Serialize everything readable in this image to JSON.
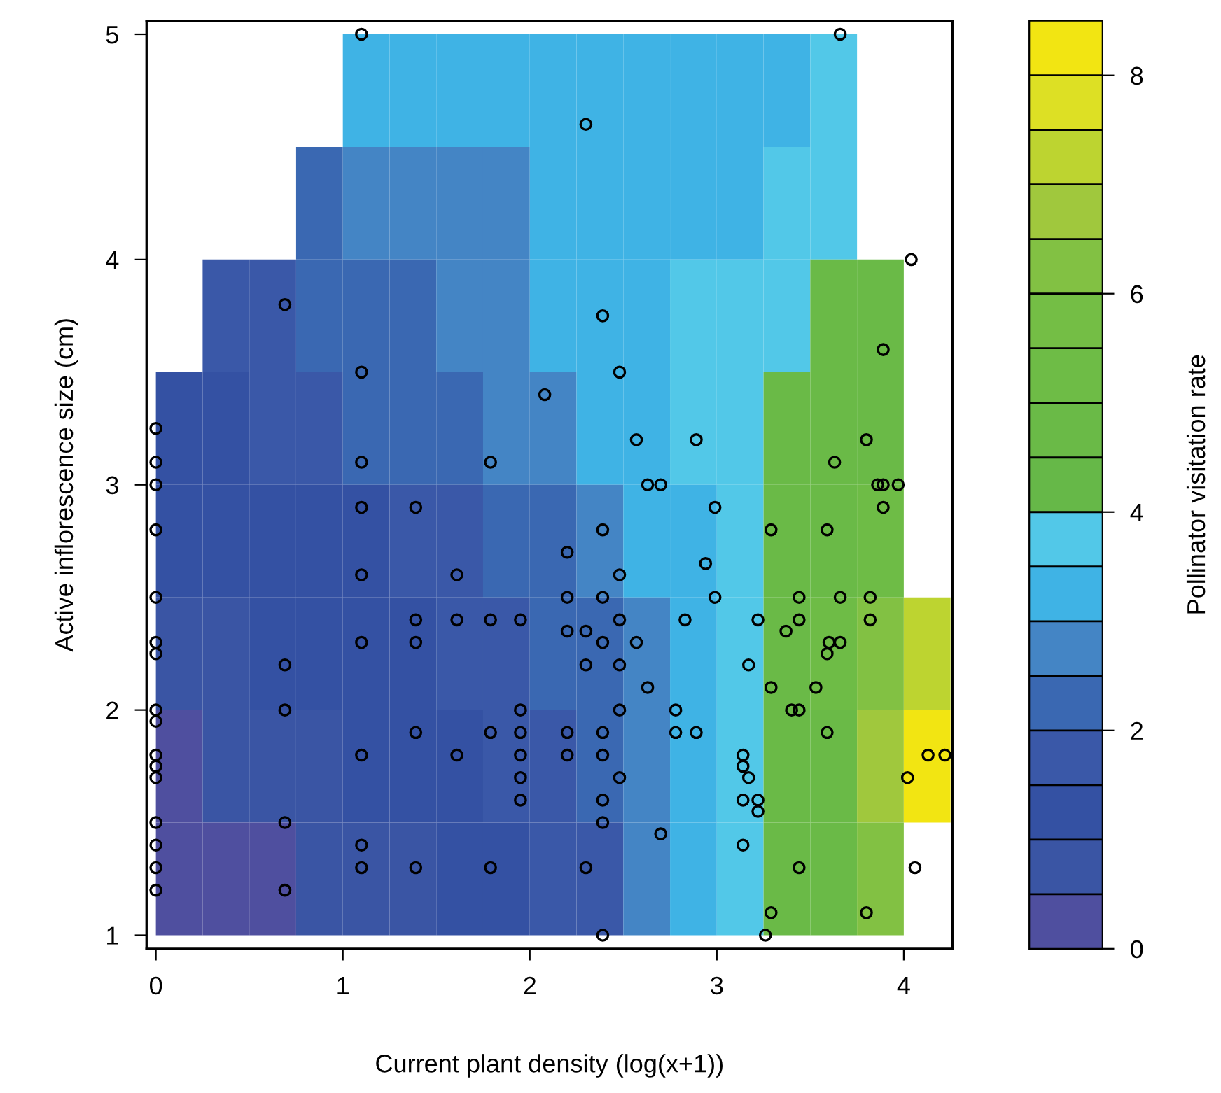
{
  "chart_data": {
    "type": "heatmap",
    "xlabel": "Current plant density (log(x+1))",
    "ylabel": "Active inflorescence size (cm)",
    "clabel": "Pollinator visitation rate",
    "xlim": [
      -0.05,
      4.26
    ],
    "ylim": [
      0.94,
      5.06
    ],
    "xticks": [
      0,
      1,
      2,
      3,
      4
    ],
    "yticks": [
      1,
      2,
      3,
      4,
      5
    ],
    "clim": [
      0,
      8.5
    ],
    "cticks": [
      0,
      2,
      4,
      6,
      8
    ],
    "colors": [
      "#4f4f9f",
      "#3a55a4",
      "#3451a3",
      "#3a58a8",
      "#3a68b2",
      "#4485c5",
      "#3fb3e5",
      "#52c8e8",
      "#66b848",
      "#6aba47",
      "#6ebc46",
      "#74be45",
      "#82c143",
      "#a0c83d",
      "#bdd430",
      "#dde024",
      "#f2e512"
    ],
    "grid": false,
    "x": [
      0.125,
      0.375,
      0.625,
      0.875,
      1.125,
      1.375,
      1.625,
      1.875,
      2.125,
      2.375,
      2.625,
      2.875,
      3.125,
      3.375,
      3.625,
      3.875,
      4.125
    ],
    "cells": [
      [
        null,
        null,
        null,
        null,
        3.25,
        3.25,
        3.25,
        3.25,
        3.25,
        3.25,
        3.25,
        3.25,
        3.25,
        3.25,
        3.75,
        null,
        null
      ],
      [
        null,
        null,
        null,
        2.25,
        2.75,
        2.75,
        2.75,
        2.75,
        3.25,
        3.25,
        3.25,
        3.25,
        3.25,
        3.75,
        3.75,
        null,
        null
      ],
      [
        null,
        1.75,
        1.75,
        2.25,
        2.25,
        2.25,
        2.75,
        2.75,
        3.25,
        3.25,
        3.25,
        3.75,
        3.75,
        3.75,
        4.75,
        4.75,
        null
      ],
      [
        1.25,
        1.25,
        1.75,
        1.75,
        2.25,
        2.25,
        2.25,
        2.75,
        2.75,
        3.25,
        3.25,
        3.75,
        3.75,
        4.75,
        4.75,
        4.75,
        null
      ],
      [
        1.25,
        1.25,
        1.25,
        1.25,
        1.25,
        1.75,
        1.75,
        2.25,
        2.25,
        2.75,
        3.25,
        3.25,
        3.75,
        4.75,
        4.75,
        5.25,
        null
      ],
      [
        0.75,
        0.75,
        1.25,
        1.25,
        1.25,
        1.25,
        1.75,
        1.75,
        2.25,
        2.25,
        2.75,
        3.25,
        3.75,
        4.75,
        5.25,
        6.25,
        7.25
      ],
      [
        0.25,
        0.75,
        0.75,
        0.75,
        1.25,
        1.25,
        1.25,
        1.75,
        1.75,
        2.25,
        2.75,
        3.25,
        3.75,
        4.75,
        4.75,
        6.75,
        8.25
      ],
      [
        0.25,
        0.25,
        0.25,
        0.75,
        0.75,
        0.75,
        1.25,
        1.25,
        1.75,
        1.75,
        2.75,
        3.25,
        3.75,
        4.75,
        4.75,
        6.25,
        null
      ]
    ],
    "series": [
      {
        "type": "scatter",
        "color": "#000000",
        "marker": "circle",
        "x": [
          1.1,
          0.69,
          1.1,
          2.08,
          0,
          0,
          1.1,
          1.79,
          0,
          3.66,
          2.3,
          4.04,
          2.39,
          2.48,
          3.89,
          2.57,
          2.89,
          3.8,
          3.63,
          2.63,
          2.7,
          3.86,
          3.89,
          3.97,
          0,
          1.1,
          1.39,
          0,
          1.1,
          1.61,
          1.39,
          1.61,
          1.79,
          1.95,
          0,
          0,
          1.1,
          1.39,
          0.69,
          0,
          0,
          0.69,
          1.95,
          1.39,
          1.79,
          1.95,
          0,
          0,
          0,
          1.1,
          1.61,
          1.95,
          1.95,
          1.95,
          0,
          0.69,
          0,
          1.1,
          0,
          1.1,
          1.39,
          1.79,
          0,
          0.69,
          2.99,
          3.89,
          2.39,
          3.29,
          3.59,
          2.2,
          2.48,
          2.94,
          2.2,
          2.39,
          2.99,
          3.44,
          3.66,
          3.82,
          2.48,
          2.83,
          3.22,
          3.44,
          3.82,
          2.2,
          2.3,
          3.37,
          2.39,
          2.57,
          3.6,
          3.66,
          3.59,
          2.3,
          2.48,
          3.17,
          2.63,
          3.29,
          3.53,
          2.48,
          2.78,
          3.4,
          3.44,
          2.2,
          2.39,
          2.78,
          2.89,
          3.59,
          2.2,
          2.39,
          3.14,
          3.14,
          3.17,
          4.13,
          4.22,
          4.02,
          2.48,
          2.39,
          3.14,
          3.22,
          3.22,
          2.39,
          2.7,
          3.14,
          2.3,
          3.44,
          4.06,
          3.29,
          3.8,
          2.39,
          3.26
        ],
        "values": [
          5.0,
          3.8,
          3.5,
          3.4,
          3.25,
          3.1,
          3.1,
          3.1,
          3.0,
          5.0,
          4.6,
          4.0,
          3.75,
          3.5,
          3.6,
          3.2,
          3.2,
          3.2,
          3.1,
          3.0,
          3.0,
          3.0,
          3.0,
          3.0,
          2.8,
          2.9,
          2.9,
          2.5,
          2.6,
          2.6,
          2.4,
          2.4,
          2.4,
          2.4,
          2.3,
          2.25,
          2.3,
          2.3,
          2.2,
          2.0,
          1.95,
          2.0,
          2.0,
          1.9,
          1.9,
          1.9,
          1.8,
          1.75,
          1.7,
          1.8,
          1.8,
          1.8,
          1.7,
          1.6,
          1.5,
          1.5,
          1.4,
          1.4,
          1.3,
          1.3,
          1.3,
          1.3,
          1.2,
          1.2,
          2.9,
          2.9,
          2.8,
          2.8,
          2.8,
          2.7,
          2.6,
          2.65,
          2.5,
          2.5,
          2.5,
          2.5,
          2.5,
          2.5,
          2.4,
          2.4,
          2.4,
          2.4,
          2.4,
          2.35,
          2.35,
          2.35,
          2.3,
          2.3,
          2.3,
          2.3,
          2.25,
          2.2,
          2.2,
          2.2,
          2.1,
          2.1,
          2.1,
          2.0,
          2.0,
          2.0,
          2.0,
          1.9,
          1.9,
          1.9,
          1.9,
          1.9,
          1.8,
          1.8,
          1.8,
          1.75,
          1.7,
          1.8,
          1.8,
          1.7,
          1.7,
          1.6,
          1.6,
          1.6,
          1.55,
          1.5,
          1.45,
          1.4,
          1.3,
          1.3,
          1.3,
          1.1,
          1.1,
          1.0,
          1.0
        ]
      }
    ]
  }
}
